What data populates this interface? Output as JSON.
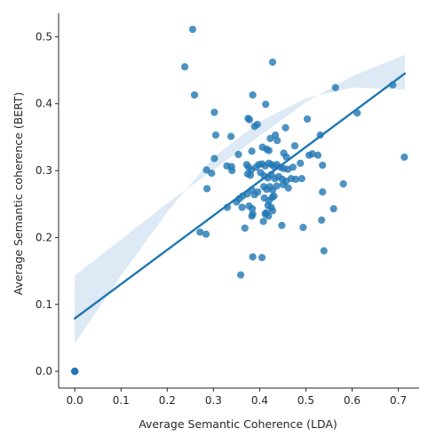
{
  "chart_data": {
    "type": "scatter",
    "xlabel": "Average Semantic Coherence (LDA)",
    "ylabel": "Average Semantic coherence (BERT)",
    "xlim": [
      -0.035,
      0.745
    ],
    "ylim": [
      -0.025,
      0.535
    ],
    "xticks": [
      0.0,
      0.1,
      0.2,
      0.3,
      0.4,
      0.5,
      0.6,
      0.7
    ],
    "xtick_labels": [
      "0.0",
      "0.1",
      "0.2",
      "0.3",
      "0.4",
      "0.5",
      "0.6",
      "0.7"
    ],
    "yticks": [
      0.0,
      0.1,
      0.2,
      0.3,
      0.4,
      0.5
    ],
    "ytick_labels": [
      "0.0",
      "0.1",
      "0.2",
      "0.3",
      "0.4",
      "0.5"
    ],
    "grid": false,
    "legend": "none",
    "colors": {
      "point": "#1f77b4",
      "line": "#1f77b4",
      "band": "#c6dbef"
    },
    "regression": {
      "x_start": 0.0,
      "y_start": 0.079,
      "x_end": 0.714,
      "y_end": 0.445,
      "ci_lower": [
        [
          0.0,
          0.042
        ],
        [
          0.1,
          0.143
        ],
        [
          0.2,
          0.238
        ],
        [
          0.3,
          0.32
        ],
        [
          0.4,
          0.373
        ],
        [
          0.5,
          0.408
        ],
        [
          0.6,
          0.424
        ],
        [
          0.714,
          0.421
        ]
      ],
      "ci_upper": [
        [
          0.0,
          0.143
        ],
        [
          0.1,
          0.197
        ],
        [
          0.2,
          0.251
        ],
        [
          0.3,
          0.301
        ],
        [
          0.4,
          0.352
        ],
        [
          0.5,
          0.402
        ],
        [
          0.6,
          0.441
        ],
        [
          0.714,
          0.473
        ]
      ]
    },
    "points": [
      [
        0.0,
        0.0
      ],
      [
        0.0,
        0.0
      ],
      [
        0.0,
        0.0
      ],
      [
        0.0,
        0.0
      ],
      [
        0.0,
        0.0
      ],
      [
        0.255,
        0.511
      ],
      [
        0.238,
        0.455
      ],
      [
        0.259,
        0.413
      ],
      [
        0.302,
        0.387
      ],
      [
        0.428,
        0.462
      ],
      [
        0.564,
        0.424
      ],
      [
        0.688,
        0.428
      ],
      [
        0.611,
        0.386
      ],
      [
        0.385,
        0.413
      ],
      [
        0.413,
        0.399
      ],
      [
        0.503,
        0.377
      ],
      [
        0.375,
        0.378
      ],
      [
        0.378,
        0.376
      ],
      [
        0.395,
        0.369
      ],
      [
        0.389,
        0.366
      ],
      [
        0.456,
        0.364
      ],
      [
        0.305,
        0.353
      ],
      [
        0.338,
        0.351
      ],
      [
        0.434,
        0.353
      ],
      [
        0.423,
        0.348
      ],
      [
        0.438,
        0.345
      ],
      [
        0.531,
        0.353
      ],
      [
        0.406,
        0.335
      ],
      [
        0.415,
        0.332
      ],
      [
        0.42,
        0.33
      ],
      [
        0.383,
        0.329
      ],
      [
        0.476,
        0.337
      ],
      [
        0.452,
        0.326
      ],
      [
        0.458,
        0.32
      ],
      [
        0.507,
        0.323
      ],
      [
        0.514,
        0.325
      ],
      [
        0.526,
        0.323
      ],
      [
        0.302,
        0.318
      ],
      [
        0.354,
        0.324
      ],
      [
        0.713,
        0.32
      ],
      [
        0.329,
        0.307
      ],
      [
        0.339,
        0.306
      ],
      [
        0.34,
        0.3
      ],
      [
        0.285,
        0.301
      ],
      [
        0.296,
        0.296
      ],
      [
        0.372,
        0.309
      ],
      [
        0.376,
        0.305
      ],
      [
        0.382,
        0.301
      ],
      [
        0.392,
        0.305
      ],
      [
        0.398,
        0.309
      ],
      [
        0.405,
        0.31
      ],
      [
        0.412,
        0.307
      ],
      [
        0.42,
        0.311
      ],
      [
        0.426,
        0.309
      ],
      [
        0.431,
        0.306
      ],
      [
        0.437,
        0.309
      ],
      [
        0.445,
        0.305
      ],
      [
        0.452,
        0.303
      ],
      [
        0.461,
        0.302
      ],
      [
        0.472,
        0.305
      ],
      [
        0.488,
        0.311
      ],
      [
        0.536,
        0.308
      ],
      [
        0.374,
        0.295
      ],
      [
        0.38,
        0.293
      ],
      [
        0.402,
        0.297
      ],
      [
        0.41,
        0.292
      ],
      [
        0.418,
        0.289
      ],
      [
        0.425,
        0.294
      ],
      [
        0.433,
        0.288
      ],
      [
        0.441,
        0.291
      ],
      [
        0.449,
        0.287
      ],
      [
        0.457,
        0.284
      ],
      [
        0.468,
        0.288
      ],
      [
        0.478,
        0.287
      ],
      [
        0.491,
        0.288
      ],
      [
        0.409,
        0.276
      ],
      [
        0.415,
        0.272
      ],
      [
        0.422,
        0.276
      ],
      [
        0.428,
        0.271
      ],
      [
        0.437,
        0.277
      ],
      [
        0.451,
        0.279
      ],
      [
        0.462,
        0.274
      ],
      [
        0.383,
        0.271
      ],
      [
        0.389,
        0.264
      ],
      [
        0.396,
        0.268
      ],
      [
        0.373,
        0.265
      ],
      [
        0.363,
        0.262
      ],
      [
        0.356,
        0.258
      ],
      [
        0.35,
        0.253
      ],
      [
        0.286,
        0.273
      ],
      [
        0.581,
        0.28
      ],
      [
        0.536,
        0.268
      ],
      [
        0.41,
        0.259
      ],
      [
        0.42,
        0.255
      ],
      [
        0.427,
        0.26
      ],
      [
        0.431,
        0.262
      ],
      [
        0.418,
        0.248
      ],
      [
        0.425,
        0.245
      ],
      [
        0.428,
        0.24
      ],
      [
        0.414,
        0.237
      ],
      [
        0.377,
        0.247
      ],
      [
        0.384,
        0.243
      ],
      [
        0.362,
        0.245
      ],
      [
        0.33,
        0.245
      ],
      [
        0.419,
        0.232
      ],
      [
        0.412,
        0.235
      ],
      [
        0.385,
        0.235
      ],
      [
        0.383,
        0.232
      ],
      [
        0.408,
        0.224
      ],
      [
        0.448,
        0.218
      ],
      [
        0.368,
        0.214
      ],
      [
        0.494,
        0.215
      ],
      [
        0.56,
        0.243
      ],
      [
        0.534,
        0.226
      ],
      [
        0.271,
        0.208
      ],
      [
        0.284,
        0.205
      ],
      [
        0.539,
        0.18
      ],
      [
        0.385,
        0.171
      ],
      [
        0.405,
        0.17
      ],
      [
        0.359,
        0.144
      ]
    ]
  }
}
